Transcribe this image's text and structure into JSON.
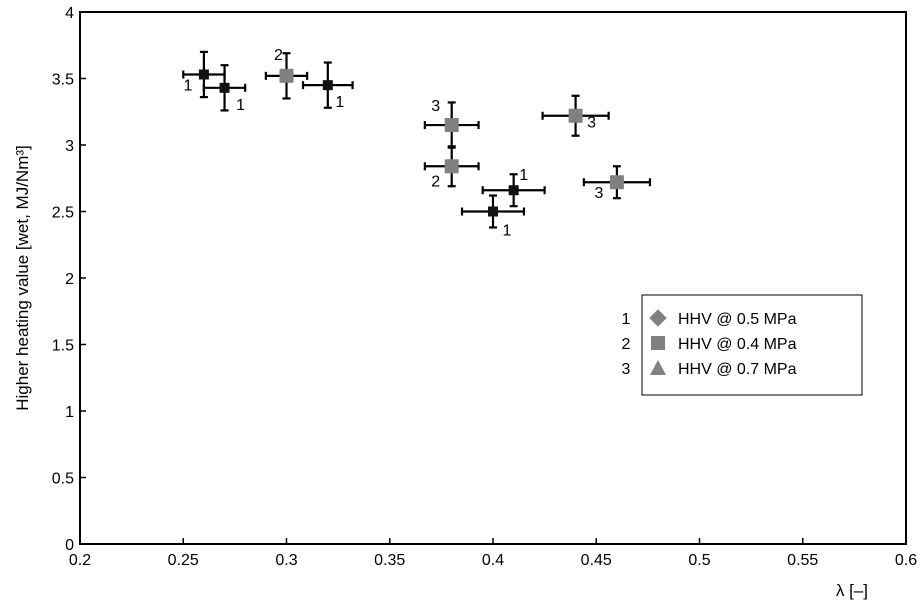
{
  "chart_data": {
    "type": "scatter",
    "title": "",
    "xlabel": "λ [–]",
    "ylabel": "Higher heating value [wet, MJ/Nm³]",
    "xlim": [
      0.2,
      0.6
    ],
    "ylim": [
      0,
      4
    ],
    "x_ticks": [
      "0.2",
      "0.25",
      "0.3",
      "0.35",
      "0.4",
      "0.45",
      "0.5",
      "0.55",
      "0.6"
    ],
    "y_ticks": [
      "0",
      "0.5",
      "1",
      "1.5",
      "2",
      "2.5",
      "3",
      "3.5",
      "4"
    ],
    "grid": false,
    "legend_position": "right",
    "series": [
      {
        "name": "HHV @ 0.5 MPa",
        "key": "1",
        "marker": "diamond",
        "color": "#111111",
        "points": [
          {
            "x": 0.26,
            "y": 3.53,
            "xerr": 0.01,
            "yerr": 0.17
          },
          {
            "x": 0.27,
            "y": 3.43,
            "xerr": 0.01,
            "yerr": 0.17
          },
          {
            "x": 0.32,
            "y": 3.45,
            "xerr": 0.012,
            "yerr": 0.17
          },
          {
            "x": 0.4,
            "y": 2.5,
            "xerr": 0.015,
            "yerr": 0.12
          },
          {
            "x": 0.41,
            "y": 2.66,
            "xerr": 0.015,
            "yerr": 0.12
          }
        ]
      },
      {
        "name": "HHV @ 0.4 MPa",
        "key": "2",
        "marker": "square",
        "color": "#808080",
        "points": [
          {
            "x": 0.3,
            "y": 3.52,
            "xerr": 0.01,
            "yerr": 0.17
          },
          {
            "x": 0.38,
            "y": 2.84,
            "xerr": 0.013,
            "yerr": 0.15
          }
        ]
      },
      {
        "name": "HHV @ 0.7 MPa",
        "key": "3",
        "marker": "triangle",
        "color": "#808080",
        "points": [
          {
            "x": 0.38,
            "y": 3.15,
            "xerr": 0.013,
            "yerr": 0.17
          },
          {
            "x": 0.44,
            "y": 3.22,
            "xerr": 0.016,
            "yerr": 0.15
          },
          {
            "x": 0.46,
            "y": 2.72,
            "xerr": 0.016,
            "yerr": 0.12
          }
        ]
      }
    ],
    "point_labels": [
      {
        "text": "1",
        "x": 0.26,
        "y": 3.53
      },
      {
        "text": "1",
        "x": 0.27,
        "y": 3.43
      },
      {
        "text": "2",
        "x": 0.3,
        "y": 3.52
      },
      {
        "text": "1",
        "x": 0.32,
        "y": 3.45
      },
      {
        "text": "3",
        "x": 0.38,
        "y": 3.15
      },
      {
        "text": "2",
        "x": 0.38,
        "y": 2.84
      },
      {
        "text": "1",
        "x": 0.4,
        "y": 2.5
      },
      {
        "text": "1",
        "x": 0.41,
        "y": 2.66
      },
      {
        "text": "3",
        "x": 0.44,
        "y": 3.22
      },
      {
        "text": "3",
        "x": 0.46,
        "y": 2.72
      }
    ]
  }
}
